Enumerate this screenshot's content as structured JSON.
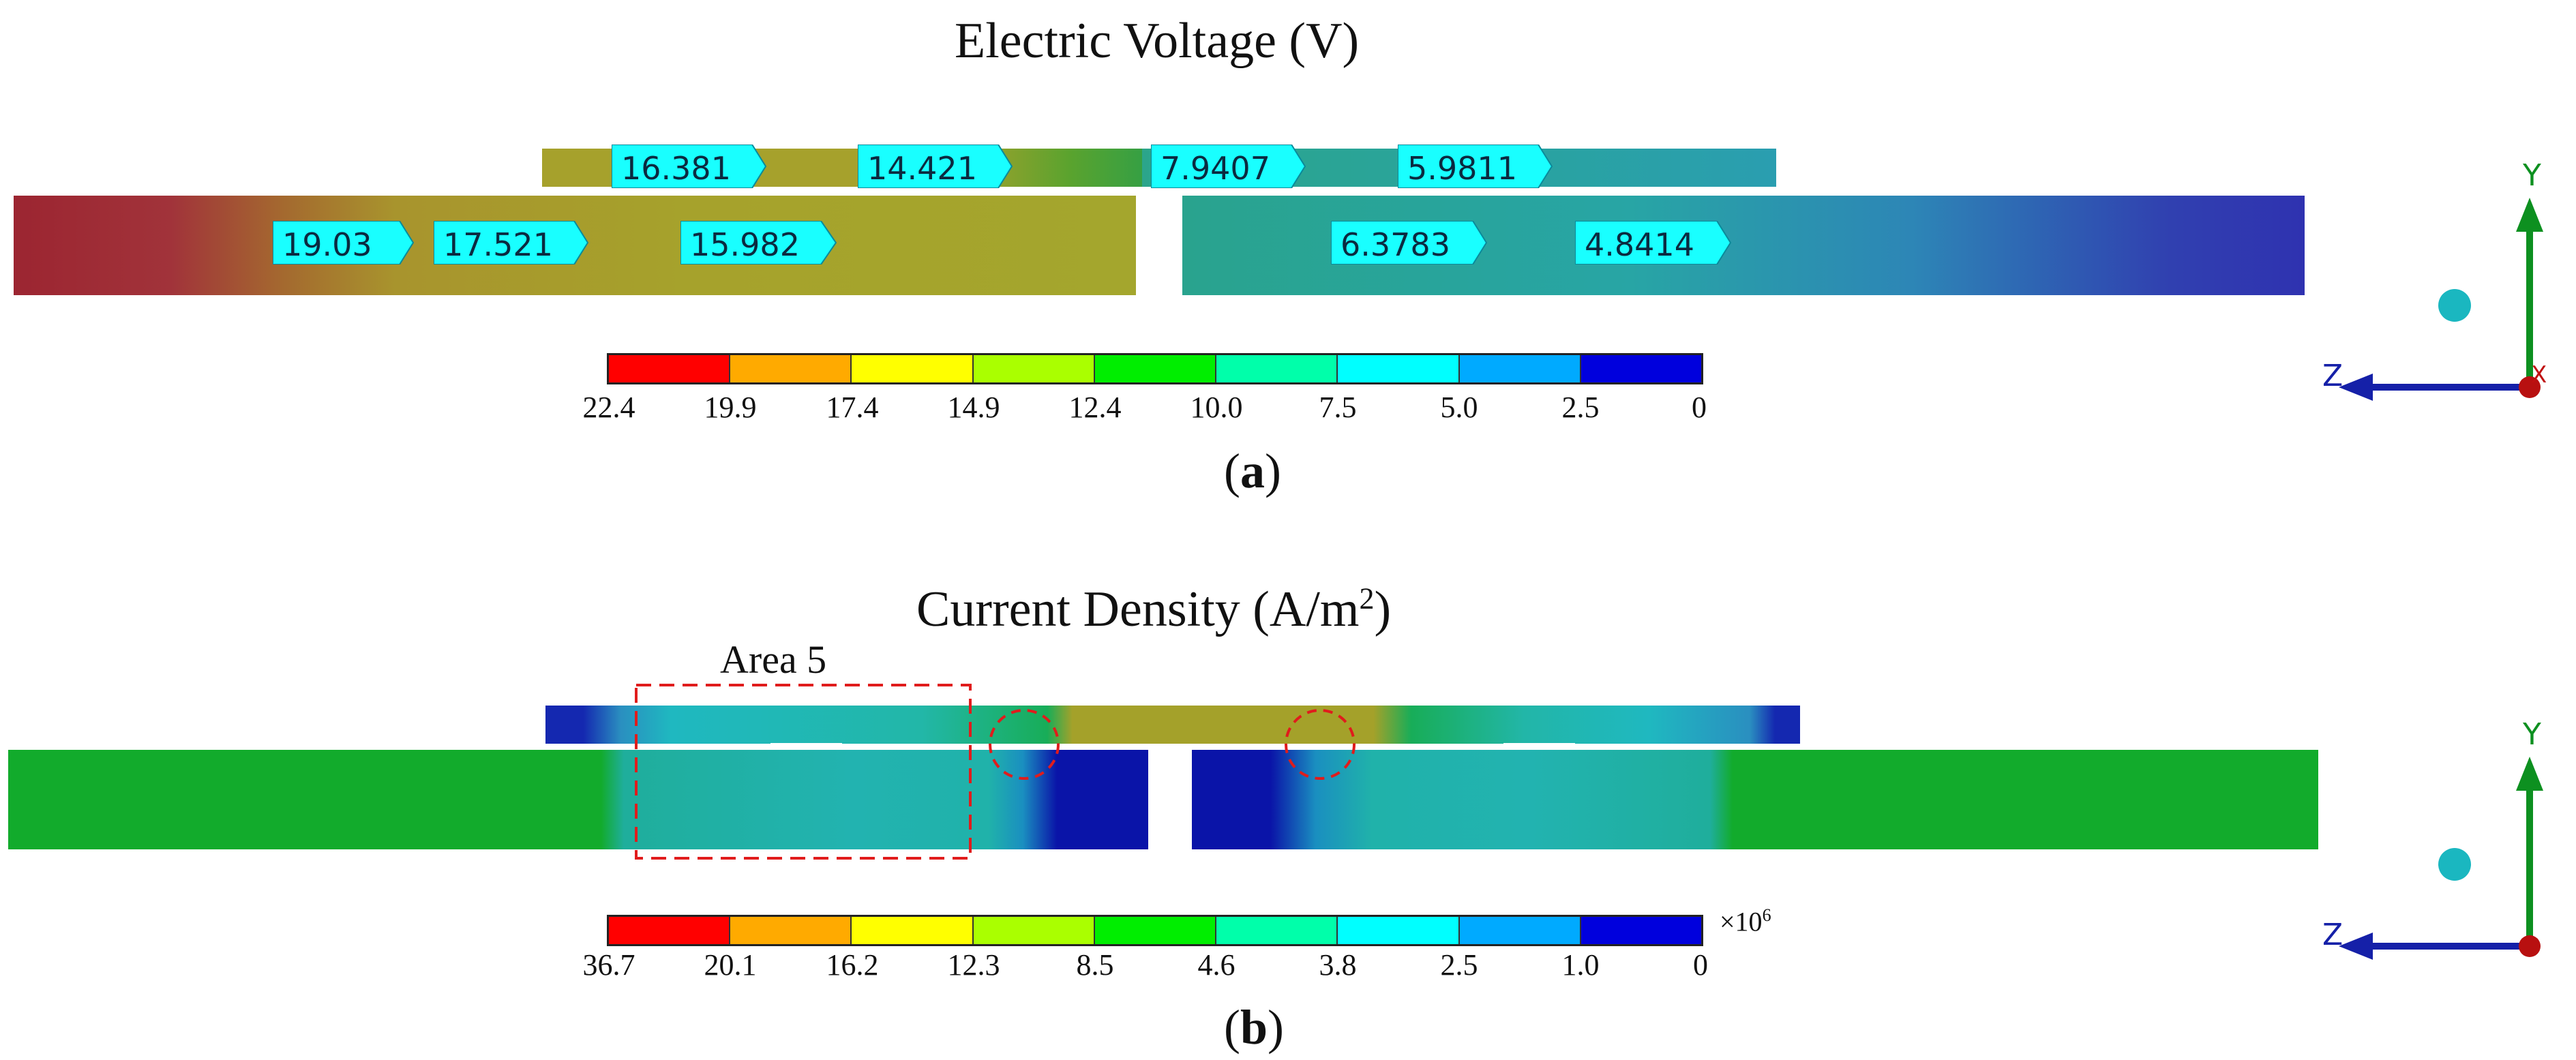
{
  "panel_a": {
    "title": "Electric Voltage (V)",
    "label_open": "(",
    "label_letter": "a",
    "label_close": ")",
    "probes": [
      "16.381",
      "14.421",
      "7.9407",
      "5.9811",
      "19.03",
      "17.521",
      "15.982",
      "6.3783",
      "4.8414"
    ],
    "colorbar_ticks": [
      "22.4",
      "19.9",
      "17.4",
      "14.9",
      "12.4",
      "10.0",
      "7.5",
      "5.0",
      "2.5",
      "0"
    ]
  },
  "panel_b": {
    "title_prefix": "Current Density (A/m",
    "title_sup": "2",
    "title_suffix": ")",
    "label_open": "(",
    "label_letter": "b",
    "label_close": ")",
    "area_label": "Area 5",
    "multiplier_prefix": "×10",
    "multiplier_exp": "6",
    "colorbar_ticks": [
      "36.7",
      "20.1",
      "16.2",
      "12.3",
      "8.5",
      "4.6",
      "3.8",
      "2.5",
      "1.0",
      "0"
    ]
  },
  "axes": {
    "y": "Y",
    "z": "Z",
    "x": "X"
  },
  "colorbar_colors": [
    "#ff0000",
    "#ffaa00",
    "#ffff00",
    "#aaff00",
    "#00ee00",
    "#00ffaa",
    "#00ffff",
    "#00aaff",
    "#0000dd"
  ]
}
